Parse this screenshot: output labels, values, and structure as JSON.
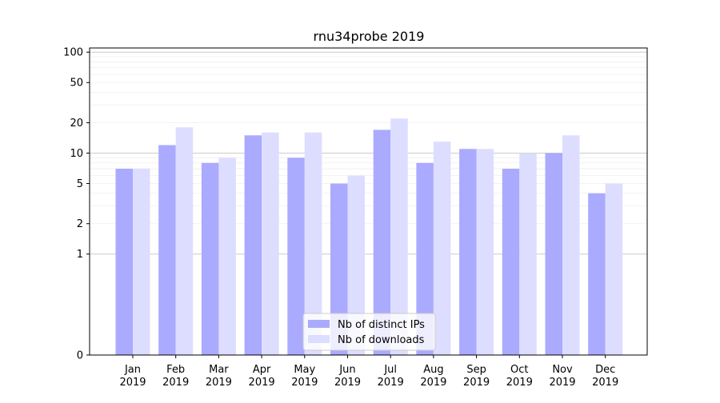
{
  "chart_data": {
    "type": "bar",
    "title": "rnu34probe 2019",
    "xlabel": "",
    "ylabel": "",
    "yscale": "symlog",
    "ylim": [
      0,
      110
    ],
    "yticks": [
      0,
      1,
      2,
      5,
      10,
      20,
      50,
      100
    ],
    "ytick_labels": [
      "0",
      "1",
      "2",
      "5",
      "10",
      "20",
      "50",
      "100"
    ],
    "categories": [
      "Jan\n2019",
      "Feb\n2019",
      "Mar\n2019",
      "Apr\n2019",
      "May\n2019",
      "Jun\n2019",
      "Jul\n2019",
      "Aug\n2019",
      "Sep\n2019",
      "Oct\n2019",
      "Nov\n2019",
      "Dec\n2019"
    ],
    "category_lines": [
      [
        "Jan",
        "2019"
      ],
      [
        "Feb",
        "2019"
      ],
      [
        "Mar",
        "2019"
      ],
      [
        "Apr",
        "2019"
      ],
      [
        "May",
        "2019"
      ],
      [
        "Jun",
        "2019"
      ],
      [
        "Jul",
        "2019"
      ],
      [
        "Aug",
        "2019"
      ],
      [
        "Sep",
        "2019"
      ],
      [
        "Oct",
        "2019"
      ],
      [
        "Nov",
        "2019"
      ],
      [
        "Dec",
        "2019"
      ]
    ],
    "series": [
      {
        "name": "Nb of distinct IPs",
        "color": "#aaaaff",
        "values": [
          7,
          12,
          8,
          15,
          9,
          5,
          17,
          8,
          11,
          7,
          10,
          4
        ]
      },
      {
        "name": "Nb of downloads",
        "color": "#ddddff",
        "values": [
          7,
          18,
          9,
          16,
          16,
          6,
          22,
          13,
          11,
          10,
          15,
          5
        ]
      }
    ],
    "legend": {
      "placement": "lower-center"
    },
    "grid": {
      "y": true,
      "major_color": "#cccccc",
      "minor_color": "#eeeeee"
    }
  }
}
